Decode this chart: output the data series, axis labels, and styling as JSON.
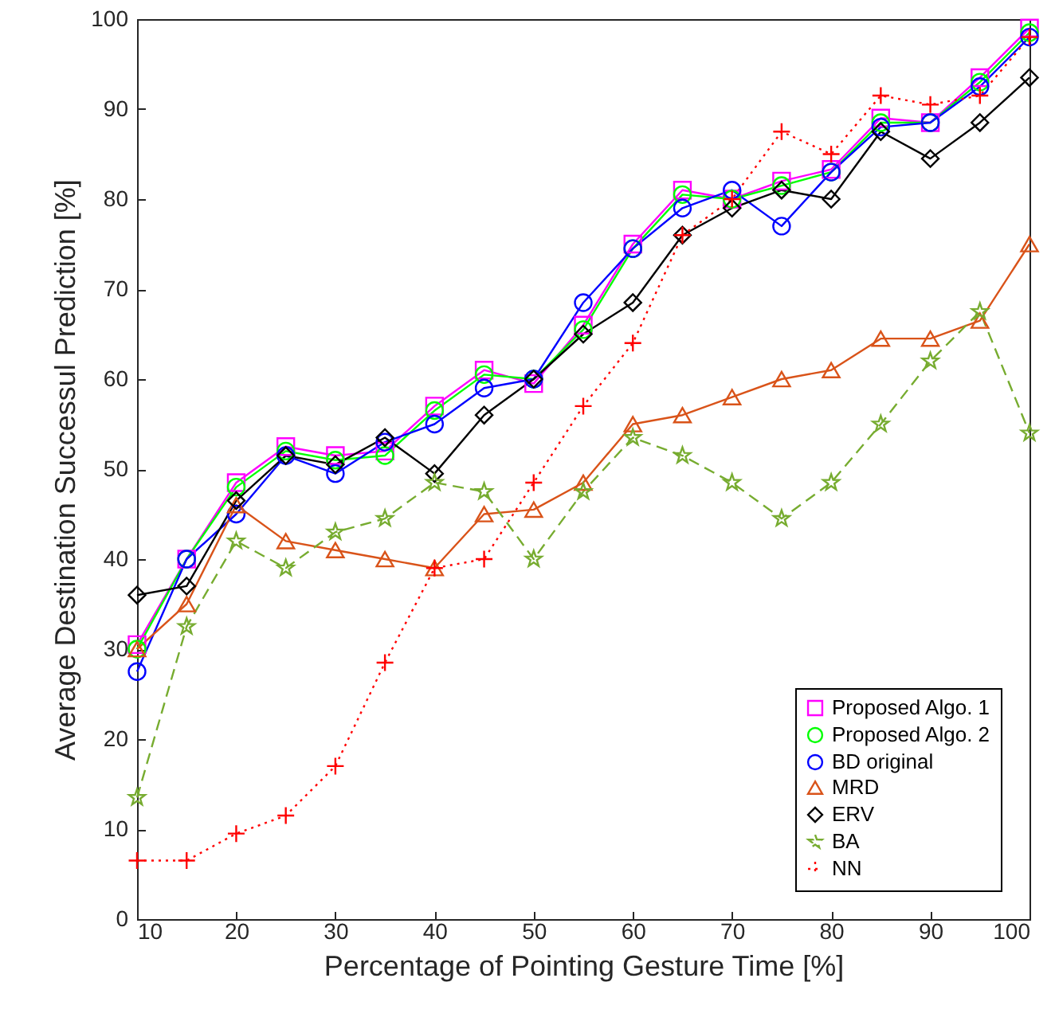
{
  "chart_data": {
    "type": "line",
    "xlabel": "Percentage of Pointing Gesture Time [%]",
    "ylabel": "Average Destination Successul Prediction [%]",
    "x": [
      10,
      15,
      20,
      25,
      30,
      35,
      40,
      45,
      50,
      55,
      60,
      65,
      70,
      75,
      80,
      85,
      90,
      95,
      100
    ],
    "xlim": [
      10,
      100
    ],
    "xticks": [
      10,
      20,
      30,
      40,
      50,
      60,
      70,
      80,
      90,
      100
    ],
    "ylim": [
      0,
      100
    ],
    "yticks": [
      0,
      10,
      20,
      30,
      40,
      50,
      60,
      70,
      80,
      90,
      100
    ],
    "grid": false,
    "legend": "bottom right",
    "series": [
      {
        "name": "Proposed Algo. 1",
        "color": "#ff00ff",
        "marker": "square",
        "line_style": "solid",
        "values": [
          30.5,
          40,
          48.5,
          52.5,
          51.5,
          52,
          57,
          61,
          59.5,
          66,
          75,
          81,
          80,
          82,
          83.3,
          89,
          88.5,
          93.5,
          99
        ]
      },
      {
        "name": "Proposed Algo. 2",
        "color": "#00ff00",
        "marker": "circle",
        "line_style": "solid",
        "values": [
          30,
          40,
          48,
          52,
          51,
          51.5,
          56.5,
          60.5,
          60,
          65.5,
          74.5,
          80.5,
          80,
          81.5,
          83,
          88.5,
          88.5,
          93,
          98.5
        ]
      },
      {
        "name": "BD original",
        "color": "#0000ff",
        "marker": "circle",
        "line_style": "solid",
        "values": [
          27.5,
          40,
          45,
          51.5,
          49.5,
          53,
          55,
          59,
          60,
          68.5,
          74.5,
          79,
          81,
          77,
          83,
          88,
          88.5,
          92.5,
          98
        ]
      },
      {
        "name": "MRD",
        "color": "#d95319",
        "marker": "triangle",
        "line_style": "solid",
        "values": [
          30,
          35,
          46,
          42,
          41,
          40,
          39,
          45,
          45.5,
          48.5,
          55,
          56,
          58,
          60,
          61,
          64.5,
          64.5,
          66.5,
          75
        ]
      },
      {
        "name": "ERV",
        "color": "#000000",
        "marker": "diamond",
        "line_style": "solid",
        "values": [
          36,
          37,
          46.5,
          51.5,
          50.5,
          53.5,
          49.5,
          56,
          60,
          65,
          68.5,
          76,
          79,
          81,
          80,
          87.5,
          84.5,
          88.5,
          93.5
        ]
      },
      {
        "name": "BA",
        "color": "#77ac30",
        "marker": "star",
        "line_style": "dashed",
        "values": [
          13.5,
          32.5,
          42,
          39,
          43,
          44.5,
          48.5,
          47.5,
          40,
          47.5,
          53.5,
          51.5,
          48.5,
          44.5,
          48.5,
          55,
          62,
          67.5,
          54
        ]
      },
      {
        "name": "NN",
        "color": "#ff0000",
        "marker": "cross",
        "line_style": "dotted",
        "values": [
          6.5,
          6.5,
          9.5,
          11.5,
          17,
          28.5,
          39,
          40,
          48.5,
          57,
          64,
          76,
          80,
          87.5,
          85,
          91.5,
          90.5,
          91.5,
          98
        ]
      }
    ]
  }
}
